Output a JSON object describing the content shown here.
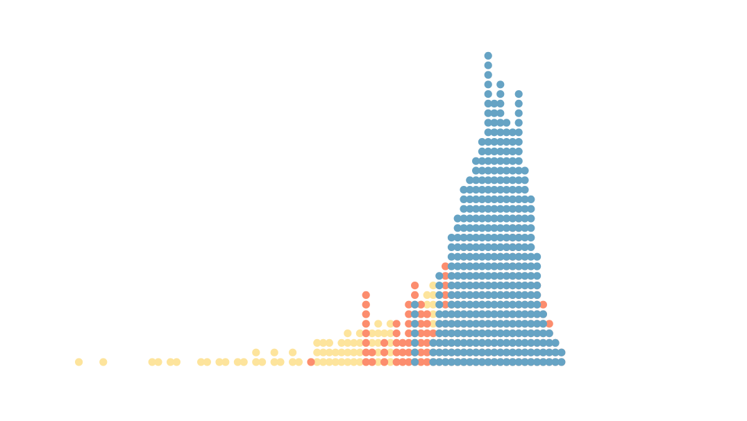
{
  "chart_data": {
    "type": "scatter",
    "subtype": "stacked-dot-strip",
    "title": "",
    "xlabel": "",
    "ylabel": "",
    "axes_visible": false,
    "grid": false,
    "legend": "none",
    "x_range": [
      0,
      100
    ],
    "y_range": [
      0,
      33
    ],
    "series": [
      {
        "color": "#fde49c",
        "columns": [
          [
            2,
            1
          ],
          [
            6,
            1
          ],
          [
            14,
            1
          ],
          [
            15,
            1
          ],
          [
            17,
            1
          ],
          [
            18,
            1
          ],
          [
            22,
            1
          ],
          [
            23,
            1
          ],
          [
            25,
            1
          ],
          [
            26,
            1
          ],
          [
            28,
            1
          ],
          [
            29,
            1
          ],
          [
            31,
            2
          ],
          [
            32,
            1
          ],
          [
            34,
            2
          ],
          [
            35,
            1
          ],
          [
            37,
            2
          ],
          [
            38,
            1
          ],
          [
            40,
            1
          ],
          [
            41,
            3
          ],
          [
            42,
            3
          ],
          [
            43,
            3
          ],
          [
            44,
            2
          ],
          [
            45,
            3
          ],
          [
            46,
            4
          ],
          [
            47,
            3
          ],
          [
            48,
            4
          ],
          [
            49,
            7
          ],
          [
            50,
            4
          ],
          [
            51,
            5
          ],
          [
            52,
            4
          ],
          [
            53,
            5
          ],
          [
            54,
            3
          ],
          [
            55,
            3
          ],
          [
            56,
            4
          ],
          [
            57,
            5
          ],
          [
            58,
            7
          ],
          [
            59,
            8
          ],
          [
            60,
            9
          ],
          [
            61,
            6
          ],
          [
            62,
            5
          ],
          [
            63,
            7
          ],
          [
            64,
            8
          ],
          [
            65,
            7
          ],
          [
            66,
            6
          ],
          [
            67,
            5
          ],
          [
            68,
            4
          ],
          [
            69,
            3
          ],
          [
            70,
            2
          ],
          [
            71,
            1
          ],
          [
            72,
            1
          ],
          [
            73,
            1
          ],
          [
            74,
            2
          ],
          [
            75,
            1
          ],
          [
            76,
            1
          ],
          [
            77,
            1
          ],
          [
            78,
            1
          ]
        ]
      },
      {
        "color": "#fc8d6e",
        "columns": [
          [
            40,
            1
          ],
          [
            49,
            8
          ],
          [
            50,
            2
          ],
          [
            52,
            3
          ],
          [
            54,
            5
          ],
          [
            55,
            3
          ],
          [
            56,
            7
          ],
          [
            57,
            9
          ],
          [
            58,
            7
          ],
          [
            59,
            6
          ],
          [
            60,
            4
          ],
          [
            61,
            5
          ],
          [
            62,
            11
          ],
          [
            63,
            10
          ],
          [
            64,
            9
          ],
          [
            65,
            14
          ],
          [
            66,
            13
          ],
          [
            67,
            11
          ],
          [
            68,
            10
          ],
          [
            69,
            9
          ],
          [
            70,
            13
          ],
          [
            71,
            12
          ],
          [
            72,
            14
          ],
          [
            73,
            15
          ],
          [
            74,
            17
          ],
          [
            75,
            12
          ],
          [
            76,
            11
          ],
          [
            77,
            9
          ],
          [
            78,
            7
          ],
          [
            79,
            5
          ],
          [
            80,
            3
          ],
          [
            81,
            2
          ]
        ]
      },
      {
        "color": "#66a3c4",
        "columns": [
          [
            57,
            7
          ],
          [
            60,
            3
          ],
          [
            61,
            10
          ],
          [
            62,
            6
          ],
          [
            63,
            14
          ],
          [
            64,
            16
          ],
          [
            65,
            19
          ],
          [
            66,
            20
          ],
          [
            67,
            22
          ],
          [
            68,
            24
          ],
          [
            69,
            33
          ],
          [
            70,
            28
          ],
          [
            71,
            30
          ],
          [
            72,
            26
          ],
          [
            73,
            25
          ],
          [
            74,
            29
          ],
          [
            75,
            21
          ],
          [
            76,
            18
          ],
          [
            77,
            12
          ],
          [
            78,
            6
          ],
          [
            79,
            4
          ],
          [
            80,
            3
          ],
          [
            81,
            2
          ]
        ]
      }
    ]
  }
}
